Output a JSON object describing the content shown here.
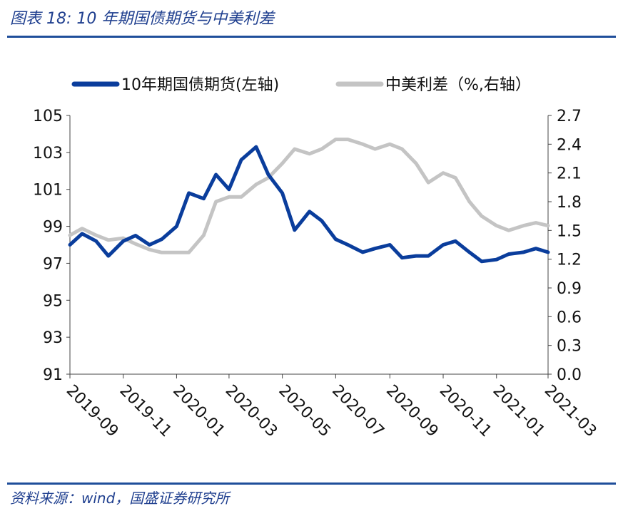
{
  "header": {
    "title": "图表 18:  10 年期国债期货与中美利差"
  },
  "footer": {
    "source": "资料来源：wind，国盛证券研究所"
  },
  "colors": {
    "futures": "#0a3d9c",
    "spread": "#c4c4c4",
    "accent": "#1f4e9a"
  },
  "chart_data": {
    "type": "line",
    "title": "",
    "legend_position": "top",
    "grid": false,
    "x_ticks": [
      "2019-09",
      "2019-11",
      "2020-01",
      "2020-03",
      "2020-05",
      "2020-07",
      "2020-09",
      "2020-11",
      "2021-01",
      "2021-03"
    ],
    "x_range": [
      "2019-09",
      "2021-03"
    ],
    "y_left": {
      "min": 91,
      "max": 105,
      "ticks": [
        "91",
        "93",
        "95",
        "97",
        "99",
        "101",
        "103",
        "105"
      ]
    },
    "y_right": {
      "min": 0.0,
      "max": 2.7,
      "ticks": [
        "0.0",
        "0.3",
        "0.6",
        "0.9",
        "1.2",
        "1.5",
        "1.8",
        "2.1",
        "2.4",
        "2.7"
      ]
    },
    "series": [
      {
        "name": "10年期国债期货(左轴)",
        "axis": "left",
        "points": [
          [
            "2019-09-01",
            98.0
          ],
          [
            "2019-09-15",
            98.6
          ],
          [
            "2019-10-01",
            98.2
          ],
          [
            "2019-10-15",
            97.4
          ],
          [
            "2019-11-01",
            98.2
          ],
          [
            "2019-11-15",
            98.5
          ],
          [
            "2019-12-01",
            98.0
          ],
          [
            "2019-12-15",
            98.3
          ],
          [
            "2020-01-01",
            99.0
          ],
          [
            "2020-01-15",
            100.8
          ],
          [
            "2020-02-01",
            100.5
          ],
          [
            "2020-02-15",
            101.8
          ],
          [
            "2020-03-01",
            101.0
          ],
          [
            "2020-03-15",
            102.6
          ],
          [
            "2020-04-01",
            103.3
          ],
          [
            "2020-04-15",
            101.8
          ],
          [
            "2020-05-01",
            100.8
          ],
          [
            "2020-05-15",
            98.8
          ],
          [
            "2020-06-01",
            99.8
          ],
          [
            "2020-06-15",
            99.3
          ],
          [
            "2020-07-01",
            98.3
          ],
          [
            "2020-07-15",
            98.0
          ],
          [
            "2020-08-01",
            97.6
          ],
          [
            "2020-08-15",
            97.8
          ],
          [
            "2020-09-01",
            98.0
          ],
          [
            "2020-09-15",
            97.3
          ],
          [
            "2020-10-01",
            97.4
          ],
          [
            "2020-10-15",
            97.4
          ],
          [
            "2020-11-01",
            98.0
          ],
          [
            "2020-11-15",
            98.2
          ],
          [
            "2020-12-01",
            97.6
          ],
          [
            "2020-12-15",
            97.1
          ],
          [
            "2021-01-01",
            97.2
          ],
          [
            "2021-01-15",
            97.5
          ],
          [
            "2021-02-01",
            97.6
          ],
          [
            "2021-02-15",
            97.8
          ],
          [
            "2021-03-01",
            97.6
          ]
        ]
      },
      {
        "name": "中美利差（%,右轴）",
        "axis": "right",
        "points": [
          [
            "2019-09-01",
            1.45
          ],
          [
            "2019-09-15",
            1.52
          ],
          [
            "2019-10-01",
            1.45
          ],
          [
            "2019-10-15",
            1.4
          ],
          [
            "2019-11-01",
            1.42
          ],
          [
            "2019-11-15",
            1.36
          ],
          [
            "2019-12-01",
            1.3
          ],
          [
            "2019-12-15",
            1.27
          ],
          [
            "2020-01-01",
            1.27
          ],
          [
            "2020-01-15",
            1.27
          ],
          [
            "2020-02-01",
            1.45
          ],
          [
            "2020-02-15",
            1.8
          ],
          [
            "2020-03-01",
            1.85
          ],
          [
            "2020-03-15",
            1.85
          ],
          [
            "2020-04-01",
            1.98
          ],
          [
            "2020-04-15",
            2.05
          ],
          [
            "2020-05-01",
            2.2
          ],
          [
            "2020-05-15",
            2.35
          ],
          [
            "2020-06-01",
            2.3
          ],
          [
            "2020-06-15",
            2.35
          ],
          [
            "2020-07-01",
            2.45
          ],
          [
            "2020-07-15",
            2.45
          ],
          [
            "2020-08-01",
            2.4
          ],
          [
            "2020-08-15",
            2.35
          ],
          [
            "2020-09-01",
            2.4
          ],
          [
            "2020-09-15",
            2.35
          ],
          [
            "2020-10-01",
            2.2
          ],
          [
            "2020-10-15",
            2.0
          ],
          [
            "2020-11-01",
            2.1
          ],
          [
            "2020-11-15",
            2.05
          ],
          [
            "2020-12-01",
            1.8
          ],
          [
            "2020-12-15",
            1.65
          ],
          [
            "2021-01-01",
            1.55
          ],
          [
            "2021-01-15",
            1.5
          ],
          [
            "2021-02-01",
            1.55
          ],
          [
            "2021-02-15",
            1.58
          ],
          [
            "2021-03-01",
            1.55
          ]
        ]
      }
    ]
  }
}
